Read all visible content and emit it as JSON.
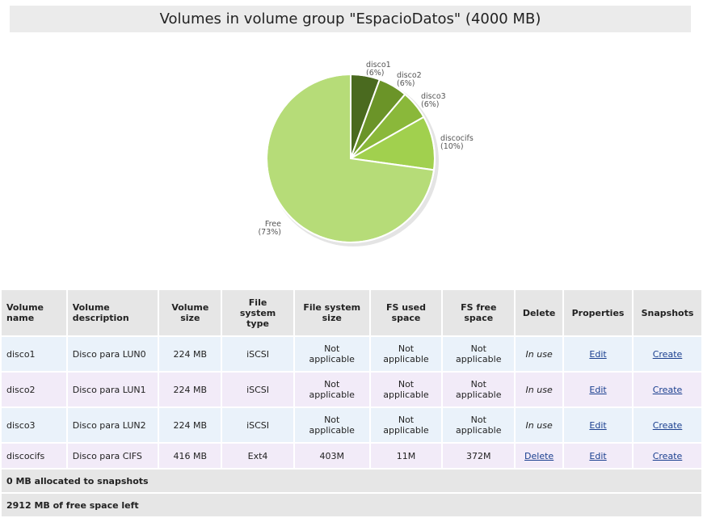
{
  "page_title": "Volumes in volume group \"EspacioDatos\" (4000 MB)",
  "chart_data": {
    "type": "pie",
    "title": "",
    "slices": [
      {
        "label": "disco1",
        "pct_label": "(6%)",
        "value": 224,
        "color": "#4a6a1f"
      },
      {
        "label": "disco2",
        "pct_label": "(6%)",
        "value": 224,
        "color": "#6b9428"
      },
      {
        "label": "disco3",
        "pct_label": "(6%)",
        "value": 224,
        "color": "#8ab83a"
      },
      {
        "label": "discocifs",
        "pct_label": "(10%)",
        "value": 416,
        "color": "#a1d04e"
      },
      {
        "label": "Free",
        "pct_label": "(73%)",
        "value": 2912,
        "color": "#b6dc78"
      }
    ]
  },
  "table": {
    "headers": {
      "name": "Volume\nname",
      "description": "Volume\ndescription",
      "size": "Volume\nsize",
      "fstype": "File\nsystem\ntype",
      "fssize": "File system\nsize",
      "fsused": "FS used\nspace",
      "fsfree": "FS free\nspace",
      "delete": "Delete",
      "properties": "Properties",
      "snapshots": "Snapshots"
    },
    "rows": [
      {
        "name": "disco1",
        "description": "Disco para LUN0",
        "size": "224 MB",
        "fstype": "iSCSI",
        "fssize": "Not\napplicable",
        "fsused": "Not\napplicable",
        "fsfree": "Not\napplicable",
        "delete": "In use",
        "delete_link": false,
        "properties": "Edit",
        "snapshots": "Create"
      },
      {
        "name": "disco2",
        "description": "Disco para LUN1",
        "size": "224 MB",
        "fstype": "iSCSI",
        "fssize": "Not\napplicable",
        "fsused": "Not\napplicable",
        "fsfree": "Not\napplicable",
        "delete": "In use",
        "delete_link": false,
        "properties": "Edit",
        "snapshots": "Create"
      },
      {
        "name": "disco3",
        "description": "Disco para LUN2",
        "size": "224 MB",
        "fstype": "iSCSI",
        "fssize": "Not\napplicable",
        "fsused": "Not\napplicable",
        "fsfree": "Not\napplicable",
        "delete": "In use",
        "delete_link": false,
        "properties": "Edit",
        "snapshots": "Create"
      },
      {
        "name": "discocifs",
        "description": "Disco para CIFS",
        "size": "416 MB",
        "fstype": "Ext4",
        "fssize": "403M",
        "fsused": "11M",
        "fsfree": "372M",
        "delete": "Delete",
        "delete_link": true,
        "properties": "Edit",
        "snapshots": "Create"
      }
    ],
    "summary_snapshots": "0 MB allocated to snapshots",
    "summary_free": "2912 MB of free space left"
  }
}
